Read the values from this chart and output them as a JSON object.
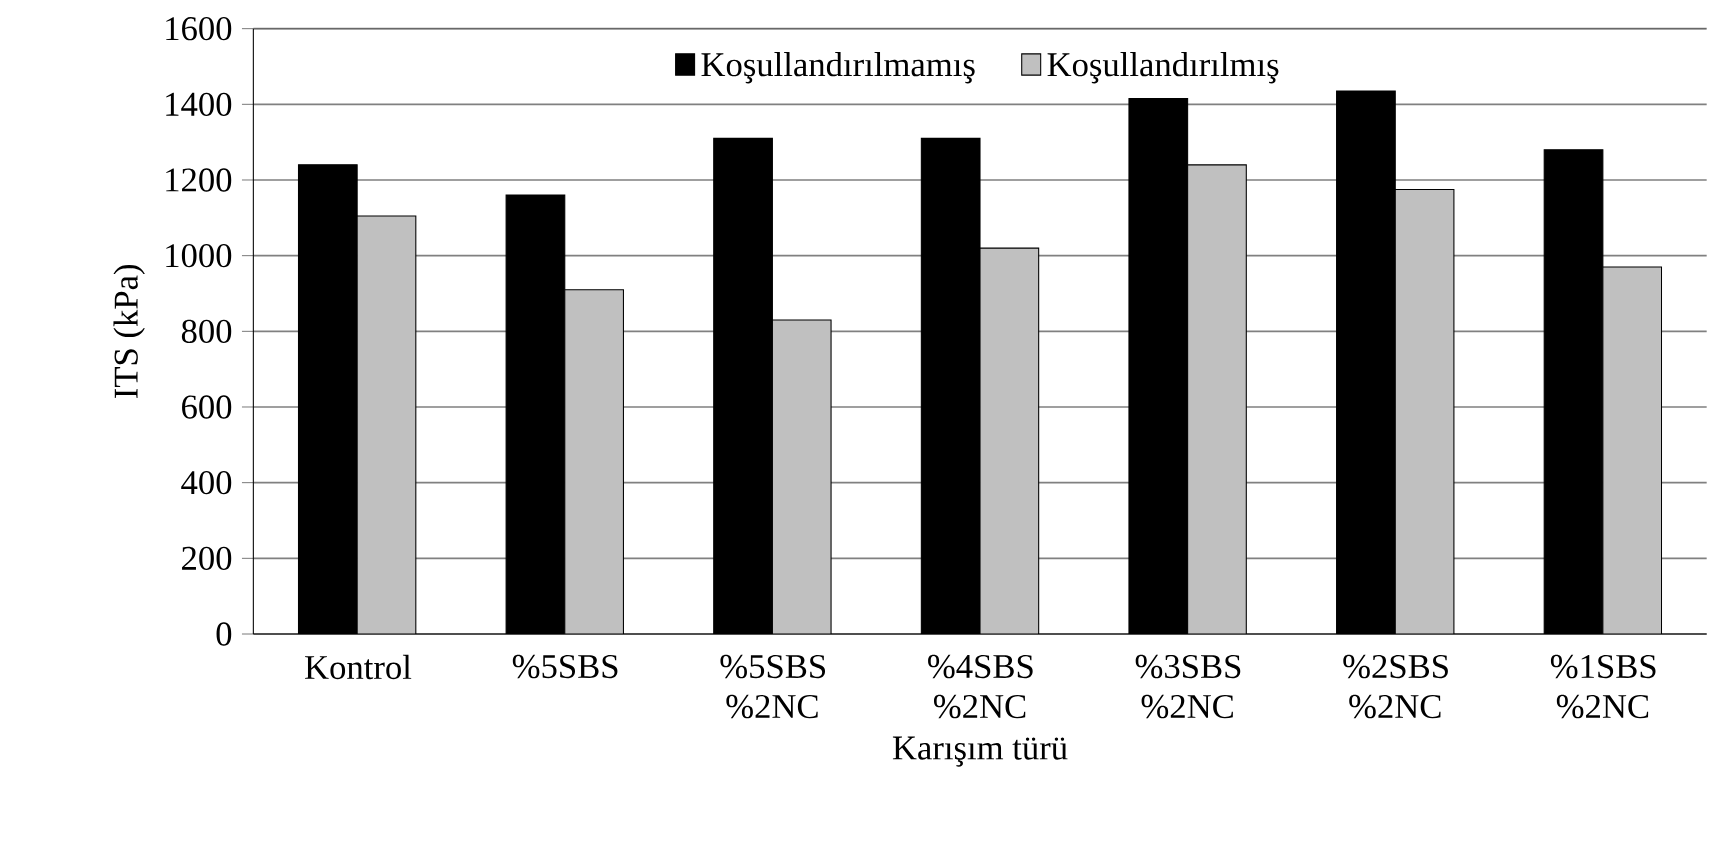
{
  "chart_data": {
    "type": "bar",
    "xlabel": "Karışım türü",
    "ylabel": "ITS (kPa)",
    "categories": [
      "Kontrol",
      "%5SBS",
      "%5SBS %2NC",
      "%4SBS %2NC",
      "%3SBS %2NC",
      "%2SBS %2NC",
      "%1SBS %2NC"
    ],
    "series": [
      {
        "name": "Koşullandırılmamış",
        "color": "#000000",
        "values": [
          1240,
          1160,
          1310,
          1310,
          1415,
          1435,
          1280
        ]
      },
      {
        "name": "Koşullandırılmış",
        "color": "#c0c0c0",
        "values": [
          1105,
          910,
          830,
          1020,
          1240,
          1175,
          970
        ]
      }
    ],
    "ylim": [
      0,
      1600
    ],
    "yticks": [
      0,
      200,
      400,
      600,
      800,
      1000,
      1200,
      1400,
      1600
    ],
    "grid": "y",
    "legend": "top"
  }
}
